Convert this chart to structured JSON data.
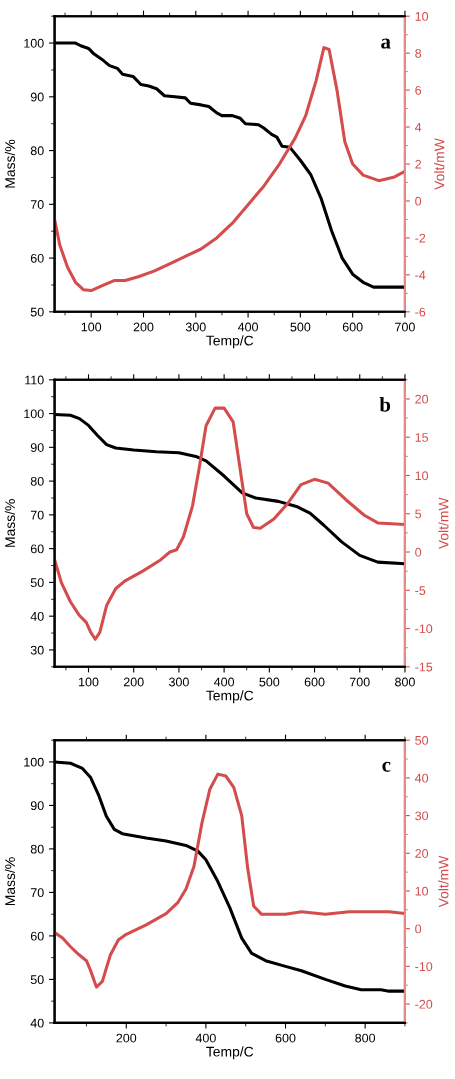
{
  "chart_data": [
    {
      "type": "line",
      "xlabel": "Temp/C",
      "ylabel": "Mass/%",
      "y2label": "Volt/mW",
      "annotations": [
        "a"
      ],
      "xlim": [
        30,
        700
      ],
      "xticks": [
        100,
        200,
        300,
        400,
        500,
        600,
        700
      ],
      "ylim": [
        50,
        105
      ],
      "yticks": [
        50,
        60,
        70,
        80,
        90,
        100
      ],
      "y2lim": [
        -6,
        10
      ],
      "y2ticks": [
        -6,
        -4,
        -2,
        0,
        2,
        4,
        6,
        8,
        10
      ],
      "grid": false,
      "legend": false,
      "series": [
        {
          "color": "#000000",
          "x": [
            30,
            70,
            80,
            95,
            105,
            120,
            135,
            150,
            160,
            180,
            195,
            210,
            225,
            240,
            260,
            280,
            290,
            310,
            325,
            340,
            350,
            370,
            385,
            395,
            420,
            430,
            445,
            455,
            465,
            480,
            500,
            520,
            540,
            560,
            580,
            600,
            620,
            640,
            700
          ],
          "values": [
            100,
            100,
            99.5,
            99,
            98,
            97,
            95.8,
            95.3,
            94.2,
            93.8,
            92.3,
            92,
            91.5,
            90.2,
            90,
            89.8,
            88.8,
            88.5,
            88.2,
            87,
            86.5,
            86.5,
            86,
            85,
            84.8,
            84.2,
            83,
            82.5,
            80.8,
            80.6,
            78.2,
            75.5,
            71,
            65,
            60,
            57,
            55.5,
            54.6,
            54.6
          ]
        },
        {
          "color": "#d44c4c",
          "axis": "y2",
          "x": [
            30,
            40,
            55,
            70,
            85,
            100,
            120,
            145,
            165,
            190,
            220,
            250,
            280,
            310,
            340,
            370,
            400,
            430,
            460,
            490,
            510,
            530,
            545,
            555,
            570,
            585,
            600,
            620,
            650,
            680,
            700
          ],
          "values": [
            -1.0,
            -2.4,
            -3.6,
            -4.4,
            -4.8,
            -4.85,
            -4.6,
            -4.3,
            -4.3,
            -4.1,
            -3.8,
            -3.4,
            -3.0,
            -2.6,
            -2.0,
            -1.2,
            -0.2,
            0.8,
            2.0,
            3.4,
            4.6,
            6.5,
            8.3,
            8.2,
            6,
            3.2,
            2,
            1.4,
            1.1,
            1.3,
            1.6
          ]
        }
      ]
    },
    {
      "type": "line",
      "xlabel": "Temp/C",
      "ylabel": "Mass/%",
      "y2label": "Volt/mW",
      "annotations": [
        "b"
      ],
      "xlim": [
        25,
        800
      ],
      "xticks": [
        100,
        200,
        300,
        400,
        500,
        600,
        700,
        800
      ],
      "ylim": [
        25,
        110
      ],
      "yticks": [
        30,
        40,
        50,
        60,
        70,
        80,
        90,
        100,
        110
      ],
      "y2lim": [
        -15,
        22.5
      ],
      "y2ticks": [
        -15,
        -10,
        -5,
        0,
        5,
        10,
        15,
        20
      ],
      "grid": false,
      "legend": false,
      "series": [
        {
          "color": "#000000",
          "x": [
            25,
            60,
            80,
            100,
            120,
            140,
            160,
            200,
            250,
            300,
            340,
            360,
            400,
            440,
            470,
            520,
            560,
            590,
            620,
            660,
            700,
            740,
            800
          ],
          "values": [
            99.7,
            99.5,
            98.5,
            96.5,
            93.5,
            90.8,
            89.8,
            89.2,
            88.7,
            88.4,
            87.2,
            86,
            81.5,
            76.5,
            75,
            74,
            72.5,
            70.5,
            67,
            62,
            58,
            56,
            55.5
          ]
        },
        {
          "color": "#d44c4c",
          "axis": "y2",
          "x": [
            25,
            40,
            60,
            80,
            95,
            105,
            115,
            125,
            140,
            160,
            180,
            220,
            260,
            280,
            295,
            310,
            330,
            345,
            360,
            380,
            400,
            420,
            435,
            450,
            465,
            480,
            510,
            540,
            570,
            600,
            630,
            670,
            710,
            740,
            800
          ],
          "values": [
            -1,
            -4,
            -6.5,
            -8.3,
            -9.2,
            -10.5,
            -11.4,
            -10.5,
            -7,
            -4.8,
            -3.8,
            -2.5,
            -1,
            0,
            0.3,
            2,
            6,
            11,
            16.5,
            18.8,
            18.8,
            17,
            11,
            5,
            3.2,
            3.1,
            4.3,
            6.3,
            8.8,
            9.5,
            9,
            6.8,
            4.8,
            3.8,
            3.6
          ]
        }
      ]
    },
    {
      "type": "line",
      "xlabel": "Temp/C",
      "ylabel": "Mass/%",
      "y2label": "Volt/mW",
      "annotations": [
        "c"
      ],
      "xlim": [
        20,
        900
      ],
      "xticks": [
        200,
        400,
        600,
        800
      ],
      "ylim": [
        40,
        105
      ],
      "yticks": [
        40,
        50,
        60,
        70,
        80,
        90,
        100
      ],
      "y2lim": [
        -25,
        50
      ],
      "y2ticks": [
        -20,
        -10,
        0,
        10,
        20,
        30,
        40,
        50
      ],
      "grid": false,
      "legend": false,
      "series": [
        {
          "color": "#000000",
          "x": [
            20,
            60,
            90,
            110,
            130,
            150,
            170,
            190,
            250,
            300,
            350,
            380,
            400,
            430,
            460,
            490,
            515,
            550,
            600,
            640,
            700,
            750,
            790,
            840,
            860,
            900
          ],
          "values": [
            100,
            99.7,
            98.5,
            96.5,
            92.5,
            87.5,
            84.5,
            83.5,
            82.5,
            81.8,
            80.8,
            79.5,
            77.5,
            72.5,
            66.5,
            59.5,
            56,
            54.3,
            53,
            52,
            50,
            48.5,
            47.6,
            47.6,
            47.3,
            47.3
          ]
        },
        {
          "color": "#d44c4c",
          "axis": "y2",
          "x": [
            20,
            40,
            60,
            80,
            100,
            110,
            125,
            140,
            160,
            180,
            200,
            250,
            300,
            330,
            350,
            370,
            390,
            410,
            430,
            450,
            470,
            490,
            505,
            520,
            540,
            600,
            640,
            700,
            760,
            860,
            900
          ],
          "values": [
            -1,
            -2.5,
            -4.8,
            -6.8,
            -8.5,
            -11,
            -15.5,
            -14,
            -7,
            -3,
            -1.5,
            1,
            4,
            7,
            10.5,
            16.5,
            28,
            37,
            41,
            40.5,
            37.5,
            30,
            16,
            6,
            3.8,
            3.8,
            4.5,
            3.8,
            4.5,
            4.5,
            4
          ]
        }
      ]
    }
  ]
}
